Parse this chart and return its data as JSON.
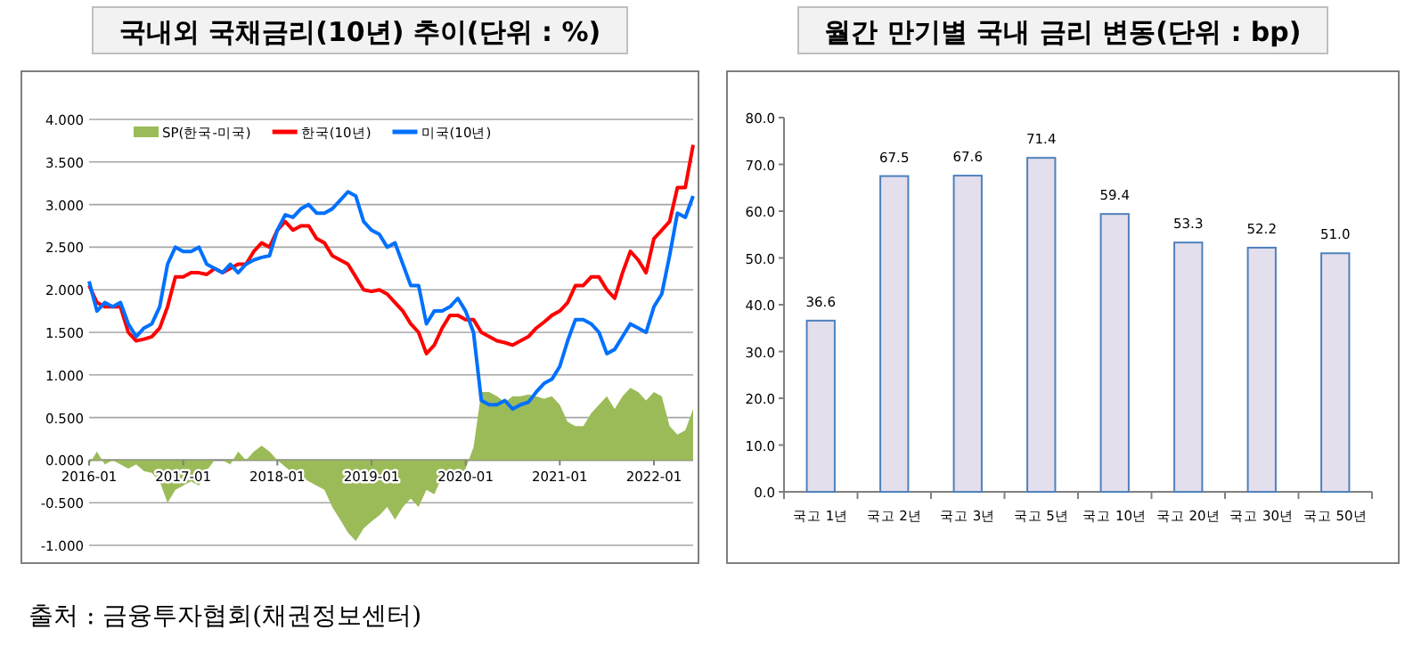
{
  "chart_data": [
    {
      "type": "line",
      "title": "국내외 국채금리(10년) 추이(단위 : %)",
      "x": [
        "2016-01",
        "2016-02",
        "2016-03",
        "2016-04",
        "2016-05",
        "2016-06",
        "2016-07",
        "2016-08",
        "2016-09",
        "2016-10",
        "2016-11",
        "2016-12",
        "2017-01",
        "2017-02",
        "2017-03",
        "2017-04",
        "2017-05",
        "2017-06",
        "2017-07",
        "2017-08",
        "2017-09",
        "2017-10",
        "2017-11",
        "2017-12",
        "2018-01",
        "2018-02",
        "2018-03",
        "2018-04",
        "2018-05",
        "2018-06",
        "2018-07",
        "2018-08",
        "2018-09",
        "2018-10",
        "2018-11",
        "2018-12",
        "2019-01",
        "2019-02",
        "2019-03",
        "2019-04",
        "2019-05",
        "2019-06",
        "2019-07",
        "2019-08",
        "2019-09",
        "2019-10",
        "2019-11",
        "2019-12",
        "2020-01",
        "2020-02",
        "2020-03",
        "2020-04",
        "2020-05",
        "2020-06",
        "2020-07",
        "2020-08",
        "2020-09",
        "2020-10",
        "2020-11",
        "2020-12",
        "2021-01",
        "2021-02",
        "2021-03",
        "2021-04",
        "2021-05",
        "2021-06",
        "2021-07",
        "2021-08",
        "2021-09",
        "2021-10",
        "2021-11",
        "2021-12",
        "2022-01",
        "2022-02",
        "2022-03",
        "2022-04",
        "2022-05",
        "2022-06"
      ],
      "series": [
        {
          "name": "SP(한국-미국)",
          "type": "area",
          "color": "#9bbb59",
          "values": [
            -0.05,
            0.1,
            -0.05,
            0.0,
            -0.05,
            -0.1,
            -0.05,
            -0.13,
            -0.15,
            -0.25,
            -0.5,
            -0.35,
            -0.3,
            -0.25,
            -0.3,
            -0.12,
            0.0,
            0.0,
            -0.05,
            0.1,
            0.0,
            0.1,
            0.17,
            0.1,
            0.0,
            -0.08,
            -0.15,
            -0.2,
            -0.25,
            -0.3,
            -0.35,
            -0.55,
            -0.7,
            -0.85,
            -0.95,
            -0.8,
            -0.72,
            -0.65,
            -0.55,
            -0.7,
            -0.55,
            -0.45,
            -0.55,
            -0.35,
            -0.4,
            -0.2,
            -0.1,
            -0.2,
            -0.1,
            0.15,
            0.8,
            0.8,
            0.75,
            0.68,
            0.75,
            0.75,
            0.77,
            0.75,
            0.72,
            0.75,
            0.65,
            0.45,
            0.4,
            0.4,
            0.55,
            0.65,
            0.75,
            0.6,
            0.75,
            0.85,
            0.8,
            0.7,
            0.8,
            0.75,
            0.4,
            0.3,
            0.35,
            0.6
          ]
        },
        {
          "name": "한국(10년)",
          "color": "#ff0000",
          "values": [
            2.05,
            1.85,
            1.8,
            1.8,
            1.8,
            1.5,
            1.4,
            1.42,
            1.45,
            1.55,
            1.8,
            2.15,
            2.15,
            2.2,
            2.2,
            2.18,
            2.25,
            2.2,
            2.25,
            2.3,
            2.3,
            2.45,
            2.55,
            2.5,
            2.7,
            2.8,
            2.7,
            2.75,
            2.75,
            2.6,
            2.55,
            2.4,
            2.35,
            2.3,
            2.15,
            2.0,
            1.98,
            2.0,
            1.95,
            1.85,
            1.75,
            1.6,
            1.5,
            1.25,
            1.35,
            1.55,
            1.7,
            1.7,
            1.65,
            1.65,
            1.5,
            1.45,
            1.4,
            1.38,
            1.35,
            1.4,
            1.45,
            1.55,
            1.62,
            1.7,
            1.75,
            1.85,
            2.05,
            2.05,
            2.15,
            2.15,
            2.0,
            1.9,
            2.2,
            2.45,
            2.35,
            2.2,
            2.6,
            2.7,
            2.8,
            3.2,
            3.2,
            3.7
          ]
        },
        {
          "name": "미국(10년)",
          "color": "#0070ff",
          "values": [
            2.1,
            1.75,
            1.85,
            1.8,
            1.85,
            1.6,
            1.45,
            1.55,
            1.6,
            1.8,
            2.3,
            2.5,
            2.45,
            2.45,
            2.5,
            2.3,
            2.25,
            2.2,
            2.3,
            2.2,
            2.3,
            2.35,
            2.38,
            2.4,
            2.7,
            2.88,
            2.85,
            2.95,
            3.0,
            2.9,
            2.9,
            2.95,
            3.05,
            3.15,
            3.1,
            2.8,
            2.7,
            2.65,
            2.5,
            2.55,
            2.3,
            2.05,
            2.05,
            1.6,
            1.75,
            1.75,
            1.8,
            1.9,
            1.75,
            1.5,
            0.7,
            0.65,
            0.65,
            0.7,
            0.6,
            0.65,
            0.68,
            0.8,
            0.9,
            0.95,
            1.1,
            1.4,
            1.65,
            1.65,
            1.6,
            1.5,
            1.25,
            1.3,
            1.45,
            1.6,
            1.55,
            1.5,
            1.8,
            1.95,
            2.4,
            2.9,
            2.85,
            3.1
          ]
        }
      ],
      "xlim": [
        "2016-01",
        "2022-06"
      ],
      "xticks": [
        "2016-01",
        "2017-01",
        "2018-01",
        "2019-01",
        "2020-01",
        "2021-01",
        "2022-01"
      ],
      "ylim": [
        -1.0,
        4.0
      ],
      "yticks": [
        {
          "value": -1.0,
          "label": "-1.000"
        },
        {
          "value": -0.5,
          "label": "-0.500"
        },
        {
          "value": 0,
          "label": "0.000"
        },
        {
          "value": 0.5,
          "label": "0.500"
        },
        {
          "value": 1.0,
          "label": "1.000"
        },
        {
          "value": 1.5,
          "label": "1.500"
        },
        {
          "value": 2.0,
          "label": "2.000"
        },
        {
          "value": 2.5,
          "label": "2.500"
        },
        {
          "value": 3.0,
          "label": "3.000"
        },
        {
          "value": 3.5,
          "label": "3.500"
        },
        {
          "value": 4.0,
          "label": "4.000"
        }
      ],
      "grid": "y",
      "legend": "top left",
      "annotations": [
        "출처 : 금융투자협회(채권정보센터)"
      ]
    },
    {
      "type": "bar",
      "title": "월간 만기별 국내 금리 변동(단위 : bp)",
      "categories": [
        "국고 1년",
        "국고 2년",
        "국고 3년",
        "국고 5년",
        "국고 10년",
        "국고 20년",
        "국고 30년",
        "국고 50년"
      ],
      "values": [
        36.6,
        67.5,
        67.6,
        71.4,
        59.4,
        53.3,
        52.2,
        51.0
      ],
      "value_labels": [
        "36.6",
        "67.5",
        "67.6",
        "71.4",
        "59.4",
        "53.3",
        "52.2",
        "51.0"
      ],
      "color": "#e4dfec",
      "ylim": [
        0,
        80
      ],
      "yticks": [
        {
          "value": 0,
          "label": "0.0"
        },
        {
          "value": 10,
          "label": "10.0"
        },
        {
          "value": 20,
          "label": "20.0"
        },
        {
          "value": 30,
          "label": "30.0"
        },
        {
          "value": 40,
          "label": "40.0"
        },
        {
          "value": 50,
          "label": "50.0"
        },
        {
          "value": 60,
          "label": "60.0"
        },
        {
          "value": 70,
          "label": "70.0"
        },
        {
          "value": 80,
          "label": "80.0"
        }
      ]
    }
  ]
}
